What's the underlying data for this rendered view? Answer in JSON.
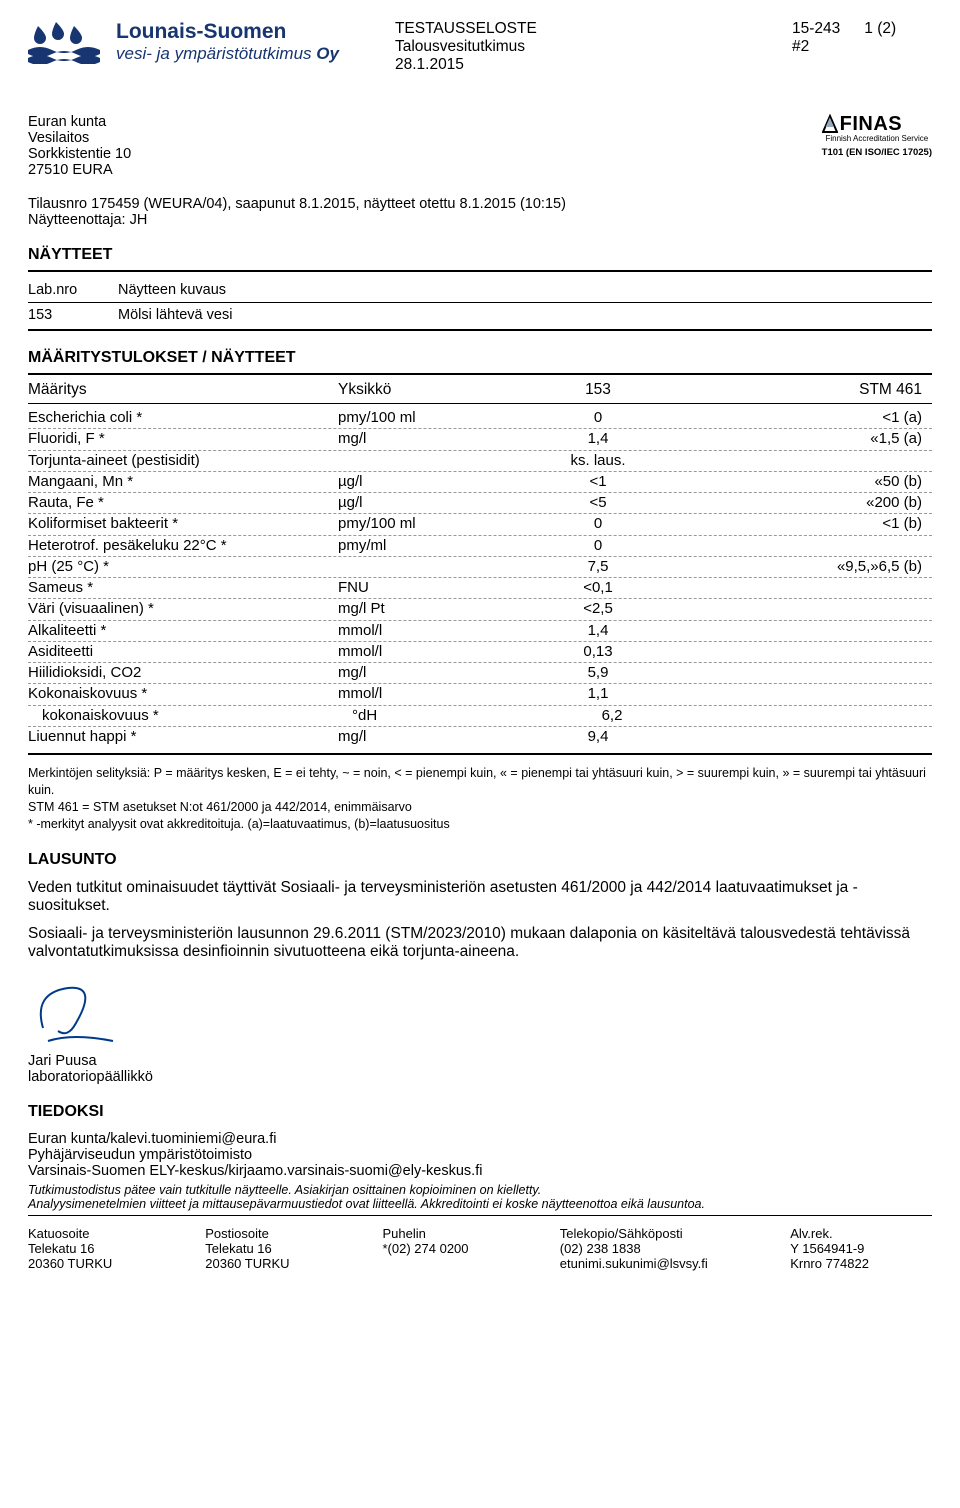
{
  "header": {
    "logo_line1": "Lounais-Suomen",
    "logo_line2_prefix": "vesi- ja ympäristötutkimus ",
    "logo_line2_suffix": "Oy",
    "doc_type": "TESTAUSSELOSTE",
    "subtitle": "Talousvesitutkimus",
    "date": "28.1.2015",
    "doc_id": "15-243",
    "rev": "#2",
    "page": "1 (2)"
  },
  "accreditation": {
    "mark": "FINAS",
    "tagline": "Finnish Accreditation Service",
    "code": "T101 (EN ISO/IEC 17025)"
  },
  "recipient": {
    "l1": "Euran kunta",
    "l2": "Vesilaitos",
    "l3": "Sorkkistentie 10",
    "l4": "27510 EURA"
  },
  "order": {
    "line1": "Tilausnro 175459 (WEURA/04), saapunut 8.1.2015, näytteet otettu 8.1.2015 (10:15)",
    "line2": "Näytteenottaja: JH"
  },
  "samples_title": "NÄYTTEET",
  "samples_header": {
    "c1": "Lab.nro",
    "c2": "Näytteen kuvaus"
  },
  "samples": [
    {
      "c1": "153",
      "c2": "Mölsi lähtevä vesi"
    }
  ],
  "results_title": "MÄÄRITYSTULOKSET / NÄYTTEET",
  "results_header": {
    "a": "Määritys",
    "b": "Yksikkö",
    "c": "153",
    "d": "STM 461"
  },
  "rows": [
    {
      "a": "Escherichia coli *",
      "b": "pmy/100 ml",
      "c": "0",
      "d": "<1 (a)"
    },
    {
      "a": "Fluoridi, F *",
      "b": "mg/l",
      "c": "1,4",
      "d": "«1,5 (a)"
    },
    {
      "a": "Torjunta-aineet (pestisidit)",
      "b": "",
      "c": "ks. laus.",
      "d": ""
    },
    {
      "a": "Mangaani, Mn *",
      "b": "µg/l",
      "c": "<1",
      "d": "«50 (b)"
    },
    {
      "a": "Rauta, Fe *",
      "b": "µg/l",
      "c": "<5",
      "d": "«200 (b)"
    },
    {
      "a": "Koliformiset bakteerit *",
      "b": "pmy/100 ml",
      "c": "0",
      "d": "<1 (b)"
    },
    {
      "a": "Heterotrof. pesäkeluku 22°C  *",
      "b": "pmy/ml",
      "c": "0",
      "d": ""
    },
    {
      "a": "pH (25 °C) *",
      "b": "",
      "c": "7,5",
      "d": "«9,5,»6,5 (b)"
    },
    {
      "a": "Sameus *",
      "b": "FNU",
      "c": "<0,1",
      "d": ""
    },
    {
      "a": "Väri (visuaalinen) *",
      "b": "mg/l Pt",
      "c": "<2,5",
      "d": ""
    },
    {
      "a": "Alkaliteetti *",
      "b": "mmol/l",
      "c": "1,4",
      "d": ""
    },
    {
      "a": "Asiditeetti",
      "b": "mmol/l",
      "c": "0,13",
      "d": ""
    },
    {
      "a": "Hiilidioksidi, CO2",
      "b": "mg/l",
      "c": "5,9",
      "d": ""
    },
    {
      "a": "Kokonaiskovuus *",
      "b": "mmol/l",
      "c": "1,1",
      "d": ""
    },
    {
      "a": "kokonaiskovuus *",
      "b": "°dH",
      "c": "6,2",
      "d": "",
      "indent": true
    },
    {
      "a": "Liuennut happi *",
      "b": "mg/l",
      "c": "9,4",
      "d": ""
    }
  ],
  "legend": {
    "l1": "Merkintöjen selityksiä: P = määritys kesken, E = ei tehty, ~ = noin, < = pienempi kuin, « = pienempi tai yhtäsuuri kuin, > = suurempi kuin, » = suurempi tai yhtäsuuri kuin.",
    "l2": "STM 461 = STM asetukset N:ot 461/2000 ja 442/2014, enimmäisarvo",
    "l3": "* -merkityt analyysit ovat akkreditoituja. (a)=laatuvaatimus, (b)=laatusuositus"
  },
  "statement_title": "LAUSUNTO",
  "statement": {
    "p1": "Veden tutkitut ominaisuudet täyttivät Sosiaali- ja terveysministeriön  asetusten 461/2000 ja 442/2014 laatuvaatimukset ja -suositukset.",
    "p2": "Sosiaali- ja terveysministeriön lausunnon 29.6.2011 (STM/2023/2010) mukaan dalaponia on käsiteltävä talousvedestä tehtävissä valvontatutkimuksissa desinfioinnin sivutuotteena eikä torjunta-aineena."
  },
  "signer": {
    "name": "Jari Puusa",
    "title": "laboratoriopäällikkö"
  },
  "cc_title": "TIEDOKSI",
  "cc": {
    "l1": "Euran kunta/kalevi.tuominiemi@eura.fi",
    "l2": "Pyhäjärviseudun ympäristötoimisto",
    "l3": "Varsinais-Suomen ELY-keskus/kirjaamo.varsinais-suomi@ely-keskus.fi"
  },
  "footnote": {
    "l1": "Tutkimustodistus pätee vain tutkitulle näytteelle. Asiakirjan osittainen kopioiminen on kielletty.",
    "l2": "Analyysimenetelmien viitteet ja mittausepävarmuustiedot ovat liitteellä. Akkreditointi ei koske näytteenottoa eikä lausuntoa."
  },
  "footer": {
    "c1": {
      "h": "Katuosoite",
      "l1": "Telekatu 16",
      "l2": "20360 TURKU"
    },
    "c2": {
      "h": "Postiosoite",
      "l1": "Telekatu 16",
      "l2": "20360 TURKU"
    },
    "c3": {
      "h": "Puhelin",
      "l1": "",
      "l2": "*(02) 274 0200"
    },
    "c4": {
      "h": "Telekopio/Sähköposti",
      "l1": "(02) 238 1838",
      "l2": "etunimi.sukunimi@lsvsy.fi"
    },
    "c5": {
      "h": "Alv.rek.",
      "l1": "Y 1564941-9",
      "l2": "Krnro 774822"
    }
  }
}
